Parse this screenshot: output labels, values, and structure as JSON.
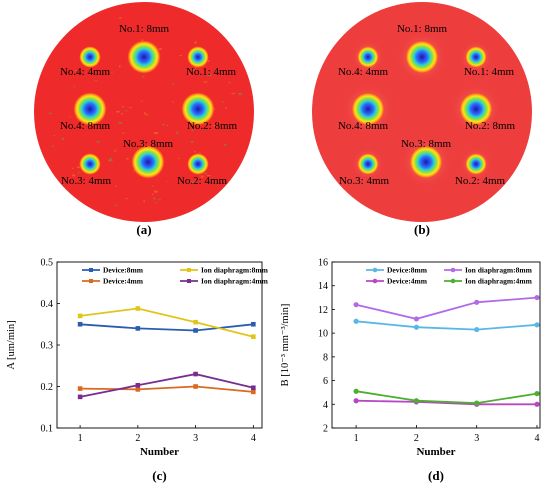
{
  "panels": {
    "a": {
      "caption": "(a)",
      "labels": [
        {
          "text": "No.1: 8mm"
        },
        {
          "text": "No.4: 4mm"
        },
        {
          "text": "No.1: 4mm"
        },
        {
          "text": "No.4: 8mm"
        },
        {
          "text": "No.2: 8mm"
        },
        {
          "text": "No.3: 8mm"
        },
        {
          "text": "No.3: 4mm"
        },
        {
          "text": "No.2: 4mm"
        }
      ]
    },
    "b": {
      "caption": "(b)",
      "labels": [
        {
          "text": "No.1: 8mm"
        },
        {
          "text": "No.4: 4mm"
        },
        {
          "text": "No.1: 4mm"
        },
        {
          "text": "No.4: 8mm"
        },
        {
          "text": "No.2: 8mm"
        },
        {
          "text": "No.3: 8mm"
        },
        {
          "text": "No.3: 4mm"
        },
        {
          "text": "No.2: 4mm"
        }
      ]
    }
  },
  "colors": {
    "disc_a": "#ee2a2a",
    "disc_b": "#ee3d3d",
    "c_device8": "#2a5db0",
    "c_device4": "#d96a1e",
    "c_ion8": "#e0c51a",
    "c_ion4": "#7a2d91",
    "d_device8": "#59b7e8",
    "d_device4": "#b847c4",
    "d_ion8": "#b26be8",
    "d_ion4": "#4caf2e"
  },
  "chart_data": [
    {
      "id": "c",
      "type": "line",
      "caption": "(c)",
      "x": [
        1,
        2,
        3,
        4
      ],
      "xlabel": "Number",
      "ylabel": "A [um/min]",
      "xlim": [
        0.6,
        4.15
      ],
      "ylim": [
        0.1,
        0.5
      ],
      "yticks": [
        "0.1",
        "0.2",
        "0.3",
        "0.4",
        "0.5"
      ],
      "xticks": [
        "1",
        "2",
        "3",
        "4"
      ],
      "legend_position": "top",
      "series": [
        {
          "name": "Device:8mm",
          "values": [
            0.35,
            0.34,
            0.335,
            0.35
          ],
          "color": "#2a5db0"
        },
        {
          "name": "Device:4mm",
          "values": [
            0.195,
            0.193,
            0.2,
            0.187
          ],
          "color": "#d96a1e"
        },
        {
          "name": "Ion diaphragm:8mm",
          "values": [
            0.37,
            0.388,
            0.355,
            0.32
          ],
          "color": "#e0c51a"
        },
        {
          "name": "Ion diaphragm:4mm",
          "values": [
            0.175,
            0.203,
            0.23,
            0.197
          ],
          "color": "#7a2d91"
        }
      ]
    },
    {
      "id": "d",
      "type": "line",
      "caption": "(d)",
      "x": [
        1,
        2,
        3,
        4
      ],
      "xlabel": "Number",
      "ylabel": "B [10⁻³ mm⁻³/min]",
      "xlim": [
        0.6,
        4.05
      ],
      "ylim": [
        2,
        16
      ],
      "yticks": [
        "2",
        "4",
        "6",
        "8",
        "10",
        "12",
        "14",
        "16"
      ],
      "xticks": [
        "1",
        "2",
        "3",
        "4"
      ],
      "legend_position": "top",
      "series": [
        {
          "name": "Device:8mm",
          "values": [
            11.0,
            10.5,
            10.3,
            10.7
          ],
          "color": "#59b7e8"
        },
        {
          "name": "Device:4mm",
          "values": [
            4.3,
            4.2,
            4.0,
            4.0
          ],
          "color": "#b847c4"
        },
        {
          "name": "Ion diaphragm:8mm",
          "values": [
            12.4,
            11.2,
            12.6,
            13.0
          ],
          "color": "#b26be8"
        },
        {
          "name": "Ion diaphragm:4mm",
          "values": [
            5.1,
            4.3,
            4.1,
            4.9
          ],
          "color": "#4caf2e"
        }
      ]
    }
  ]
}
